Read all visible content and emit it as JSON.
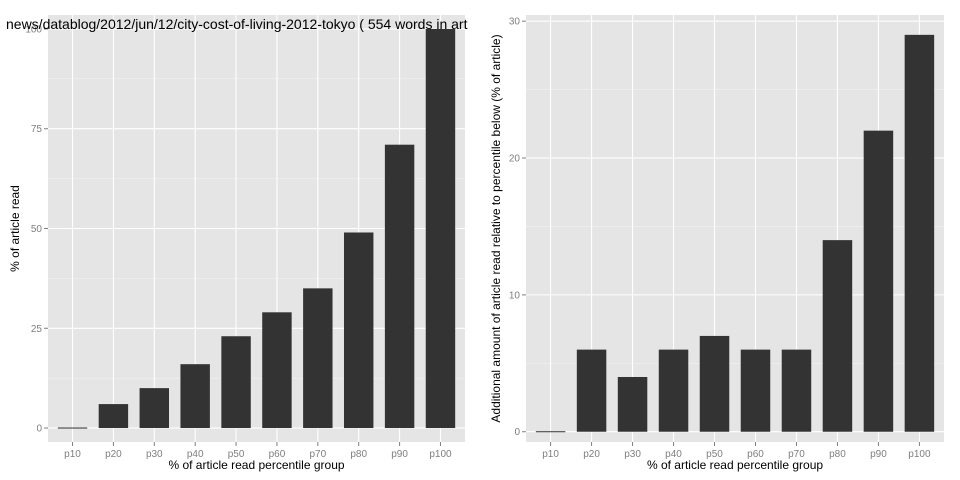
{
  "chart_data": [
    {
      "type": "bar",
      "title": "news/datablog/2012/jun/12/city-cost-of-living-2012-tokyo ( 554 words in art",
      "xlabel": "% of article read percentile group",
      "ylabel": "% of article read",
      "categories": [
        "p10",
        "p20",
        "p30",
        "p40",
        "p50",
        "p60",
        "p70",
        "p80",
        "p90",
        "p100"
      ],
      "values": [
        0,
        6,
        10,
        16,
        23,
        29,
        35,
        49,
        71,
        100
      ],
      "ylim": [
        -3.5,
        103.5
      ],
      "yticks": [
        0,
        25,
        50,
        75,
        100
      ],
      "grid": true
    },
    {
      "type": "bar",
      "title": "",
      "xlabel": "% of article read percentile group",
      "ylabel": "Additional amount of article read relative to percentile below (% of article)",
      "categories": [
        "p10",
        "p20",
        "p30",
        "p40",
        "p50",
        "p60",
        "p70",
        "p80",
        "p90",
        "p100"
      ],
      "values": [
        0,
        6,
        4,
        6,
        7,
        6,
        6,
        14,
        22,
        29
      ],
      "ylim": [
        -0.75,
        30.45
      ],
      "yticks": [
        0,
        10,
        20,
        30
      ],
      "grid": true
    }
  ]
}
